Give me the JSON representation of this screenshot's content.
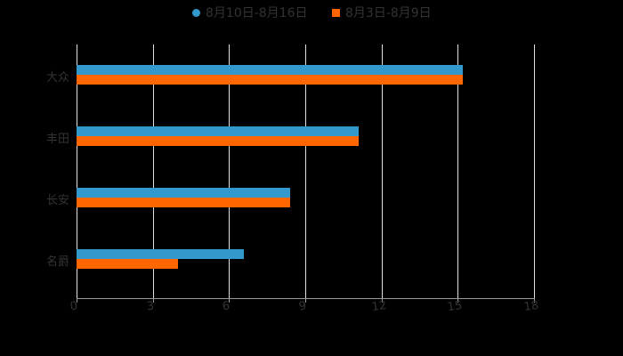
{
  "legend": {
    "series1": {
      "label": "8月10日-8月16日",
      "color": "#3399cc",
      "marker": "circle"
    },
    "series2": {
      "label": "8月3日-8月9日",
      "color": "#ff6600",
      "marker": "square"
    }
  },
  "axis": {
    "ticks": [
      "0",
      "3",
      "6",
      "9",
      "12",
      "15",
      "18"
    ]
  },
  "categories": [
    "大众",
    "丰田",
    "长安",
    "名爵"
  ],
  "chart_data": {
    "type": "bar",
    "orientation": "horizontal",
    "title": "",
    "xlabel": "",
    "ylabel": "",
    "categories": [
      "大众",
      "丰田",
      "长安",
      "名爵"
    ],
    "series": [
      {
        "name": "8月10日-8月16日",
        "color": "#3399cc",
        "values": [
          15.2,
          11.1,
          8.4,
          6.6
        ]
      },
      {
        "name": "8月3日-8月9日",
        "color": "#ff6600",
        "values": [
          15.2,
          11.1,
          8.4,
          4.0
        ]
      }
    ],
    "xlim": [
      0,
      18
    ],
    "xticks": [
      0,
      3,
      6,
      9,
      12,
      15,
      18
    ],
    "grid": true,
    "legend_position": "top"
  }
}
